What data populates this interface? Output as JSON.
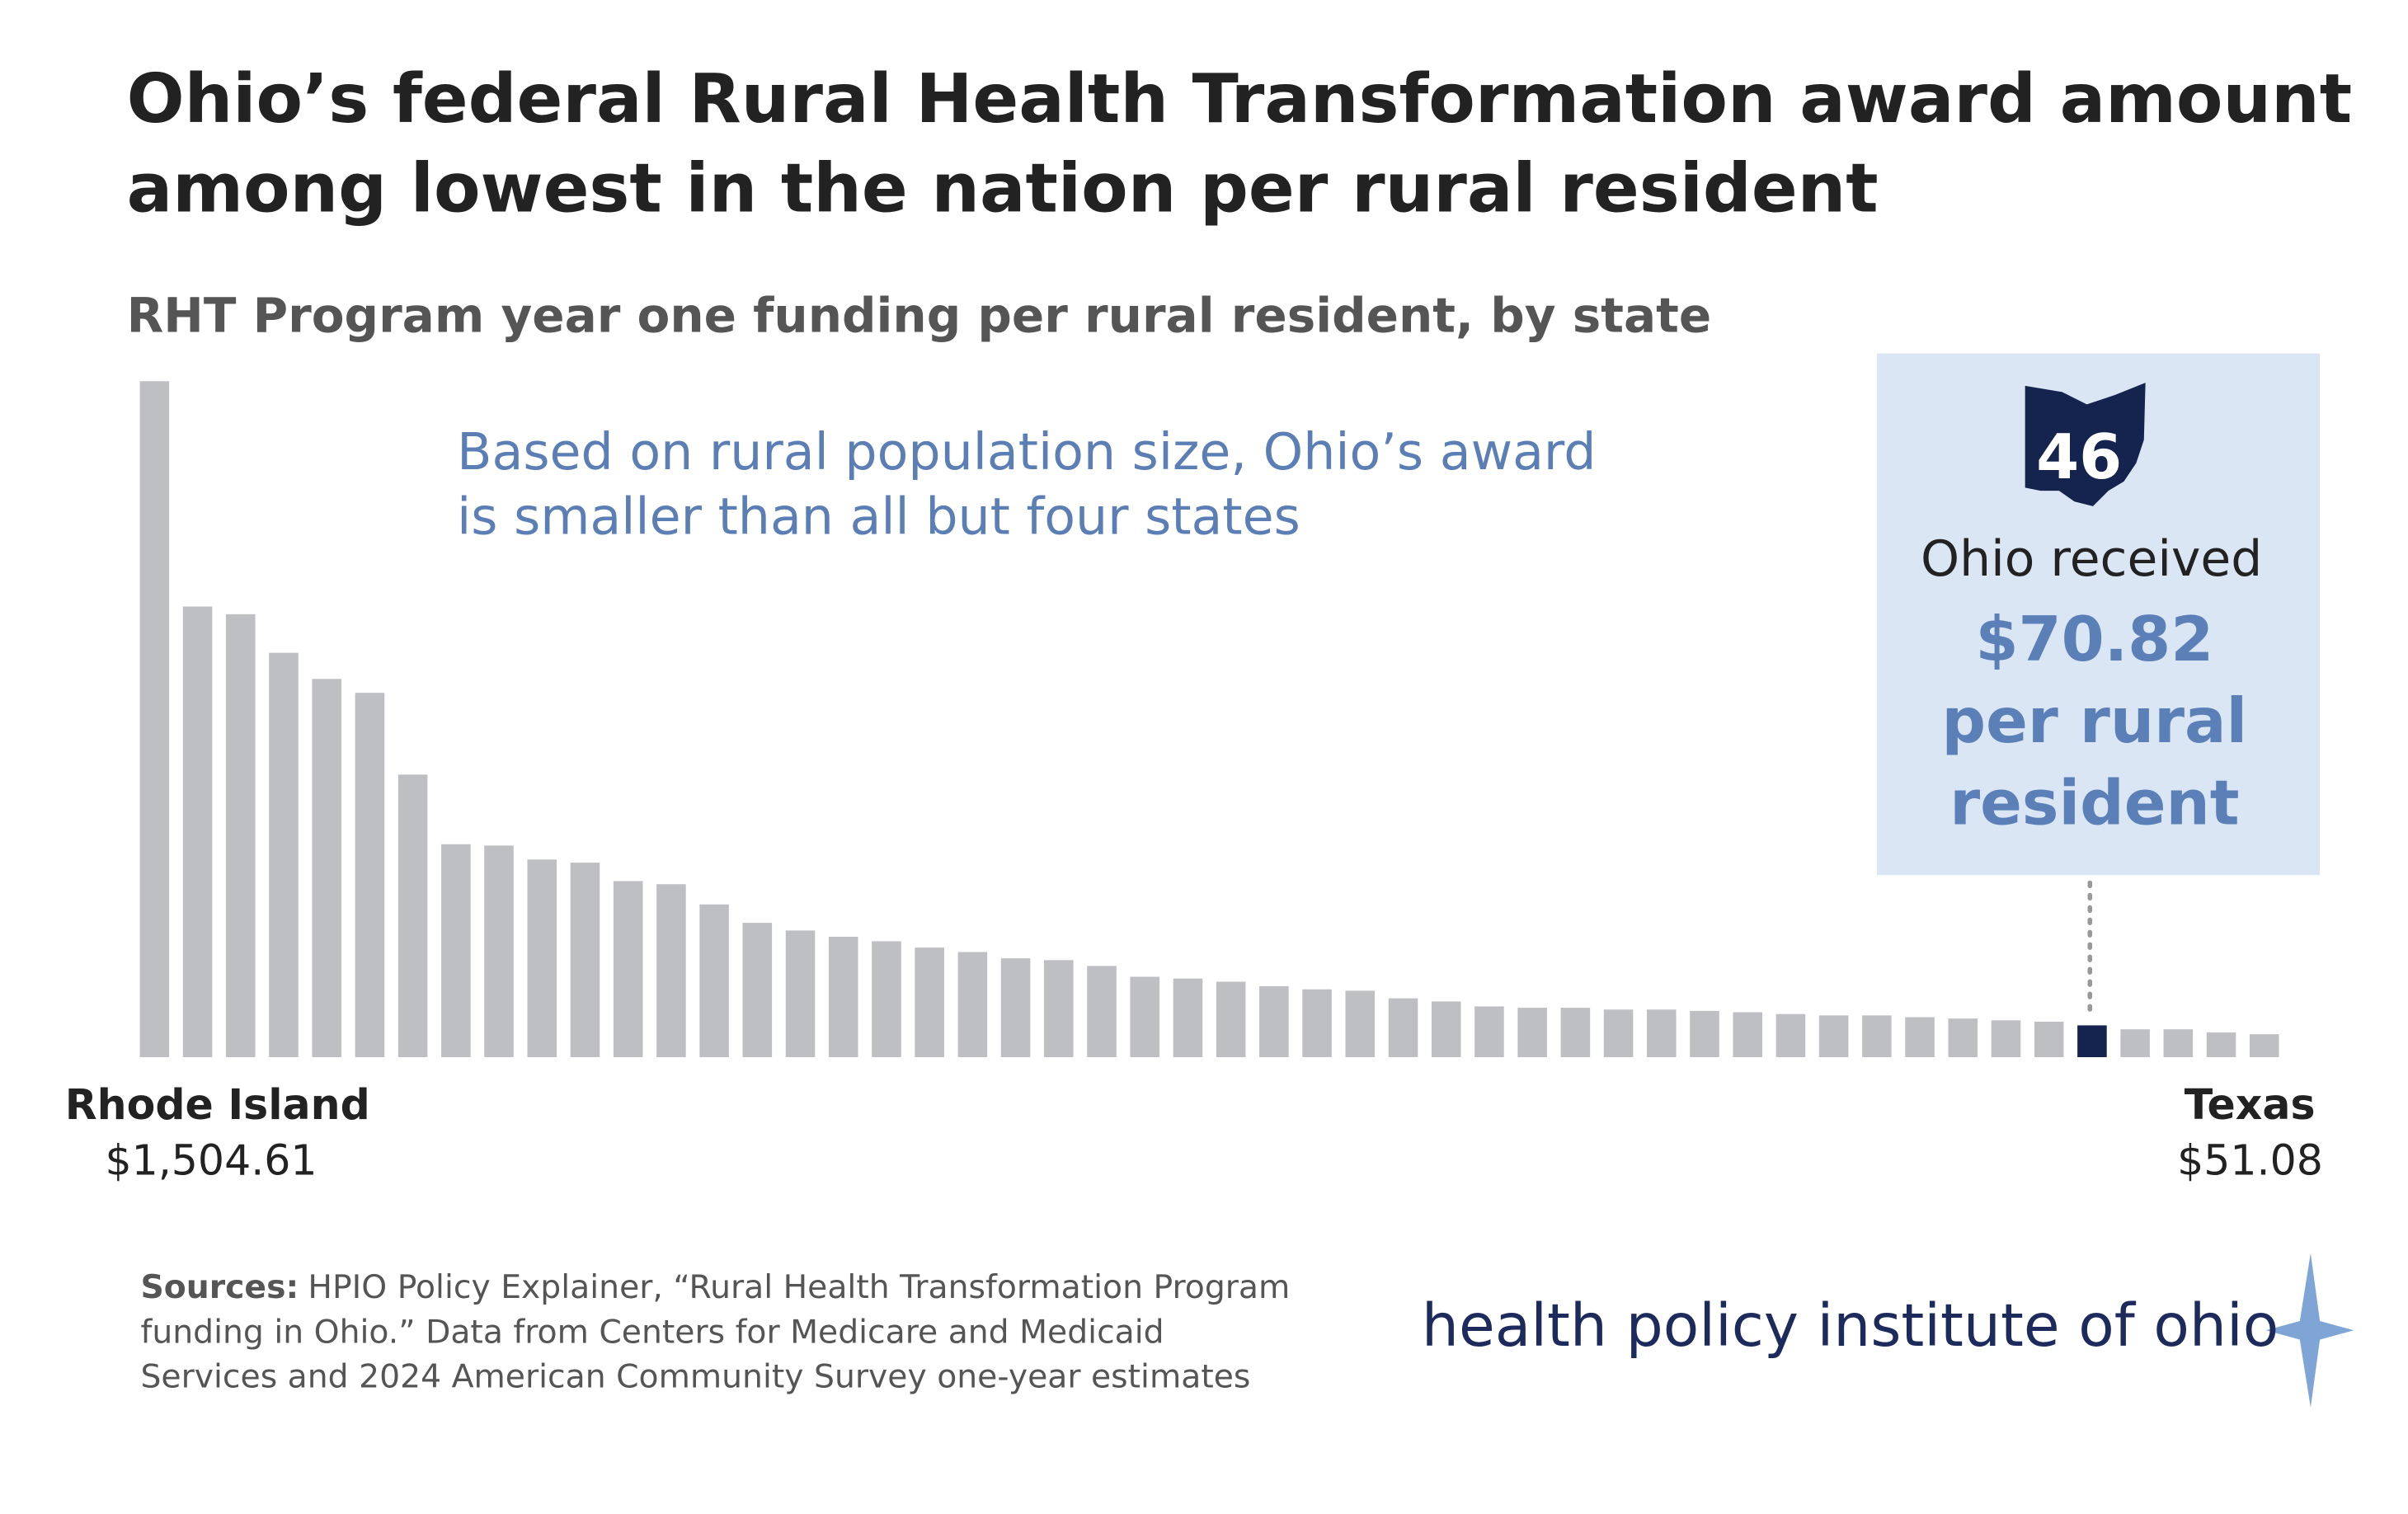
{
  "chart_data": {
    "type": "bar",
    "title": [
      "Ohio’s federal Rural Health Transformation award amount",
      "among lowest in the nation per rural resident"
    ],
    "subtitle": "RHT Program year one funding per rural resident, by state",
    "annotation": [
      "Based on rural population size, Ohio’s award",
      "is smaller than all but four states"
    ],
    "callout": {
      "rank": 46,
      "text": "Ohio received",
      "lines": [
        "per rural",
        "resident"
      ]
    },
    "categories": [
      "Rhode Island",
      null,
      null,
      null,
      null,
      null,
      null,
      null,
      null,
      null,
      null,
      null,
      null,
      null,
      null,
      null,
      null,
      null,
      null,
      null,
      null,
      null,
      null,
      null,
      null,
      null,
      null,
      null,
      null,
      null,
      null,
      null,
      null,
      null,
      null,
      null,
      null,
      null,
      null,
      null,
      null,
      null,
      null,
      null,
      null,
      null,
      null,
      null,
      null,
      "Texas"
    ],
    "values": [
      1504.61,
      1003,
      986,
      900,
      842,
      811,
      629,
      474,
      471,
      440,
      433,
      392,
      385,
      340,
      299,
      282,
      268,
      258,
      244,
      234,
      220,
      216,
      203,
      179,
      175,
      168,
      158,
      151,
      148,
      131,
      124,
      113,
      110,
      110,
      106,
      106,
      103,
      100,
      96,
      93,
      93,
      89,
      86,
      82,
      79,
      70.82,
      62,
      62,
      55,
      51.08
    ],
    "value_labels": [
      "$1,504.61",
      null,
      null,
      null,
      null,
      null,
      null,
      null,
      null,
      null,
      null,
      null,
      null,
      null,
      null,
      null,
      null,
      null,
      null,
      null,
      null,
      null,
      null,
      null,
      null,
      null,
      null,
      null,
      null,
      null,
      null,
      null,
      null,
      null,
      null,
      null,
      null,
      null,
      null,
      null,
      null,
      null,
      null,
      null,
      null,
      "$70.82",
      null,
      null,
      null,
      "$51.08"
    ],
    "color": "#bebfc3",
    "highlight_color": "#14244f",
    "highlight": "Ohio",
    "sources": {
      "label": "Sources:",
      "lines": [
        "HPIO Policy Explainer, “Rural Health Transformation Program",
        "funding in Ohio.” Data from Centers for Medicare and Medicaid",
        "Services and 2024 American Community Survey one-year estimates"
      ]
    },
    "logo": "health policy institute of ohio"
  }
}
